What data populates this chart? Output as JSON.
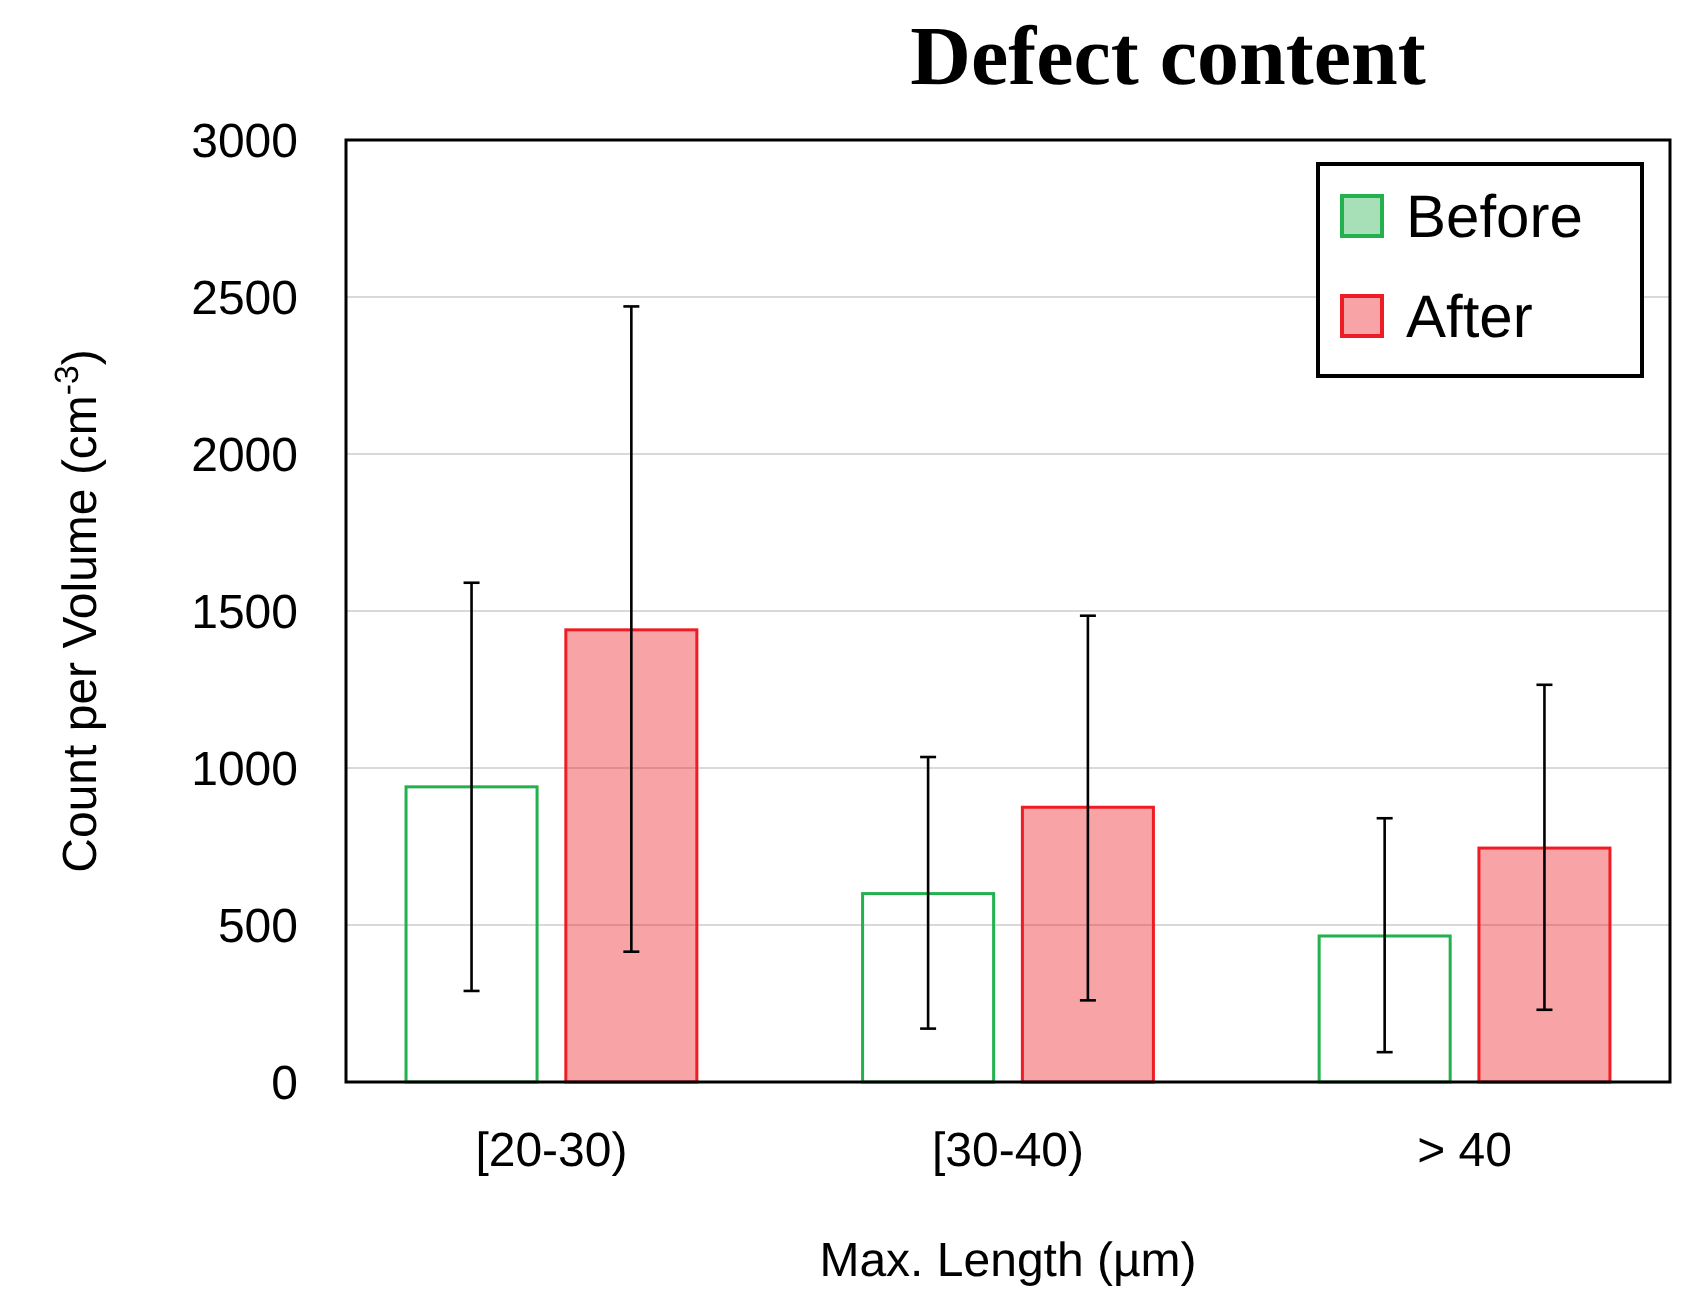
{
  "chart_data": {
    "type": "bar",
    "title": "Defect content",
    "xlabel": "Max. Length (µm)",
    "ylabel": "Count per Volume (cm$^{-3}$)",
    "categories": [
      "[20-30)",
      "[30-40)",
      "> 40"
    ],
    "series": [
      {
        "name": "Before",
        "color": "#22b14c",
        "values": [
          940,
          600,
          465
        ],
        "errors": [
          [
            290,
            1590
          ],
          [
            170,
            1035
          ],
          [
            95,
            840
          ]
        ]
      },
      {
        "name": "After",
        "color": "#ee1c24",
        "values": [
          1440,
          875,
          745
        ],
        "errors": [
          [
            415,
            2470
          ],
          [
            260,
            1485
          ],
          [
            230,
            1265
          ]
        ]
      }
    ],
    "ylim": [
      0,
      3000
    ],
    "yticks": [
      0,
      500,
      1000,
      1500,
      2000,
      2500,
      3000
    ],
    "grid": "y",
    "legend": "top right"
  }
}
